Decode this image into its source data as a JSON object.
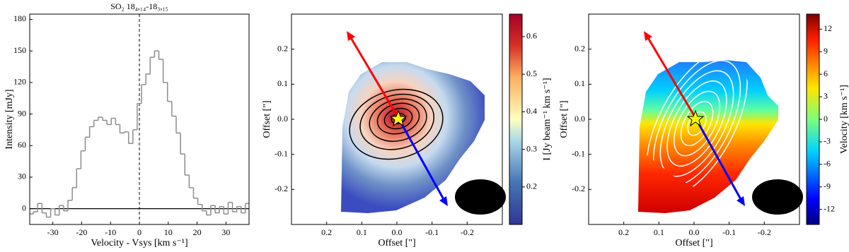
{
  "chart_data": [
    {
      "type": "step",
      "title": "SO₂ 18₄,₁₄-18₃,₁₅",
      "xlabel": "Velocity - Vsys [km s⁻¹]",
      "ylabel": "Intensity [mJy]",
      "x": [
        -37.5,
        -36,
        -34.5,
        -33,
        -31.5,
        -30,
        -28.5,
        -27,
        -25.5,
        -24,
        -22.5,
        -21,
        -19.5,
        -18,
        -16.5,
        -15,
        -13.5,
        -12,
        -10.5,
        -9,
        -7.5,
        -6,
        -4.5,
        -3,
        -1.5,
        0,
        1.5,
        3,
        4.5,
        6,
        7.5,
        9,
        10.5,
        12,
        13.5,
        15,
        16.5,
        18,
        19.5,
        21,
        22.5,
        24,
        25.5,
        27,
        28.5,
        30,
        31.5,
        33,
        34.5,
        36,
        37.5
      ],
      "values": [
        -5,
        -3,
        5,
        -4,
        -8,
        0,
        -6,
        3,
        -2,
        8,
        20,
        38,
        55,
        68,
        78,
        84,
        87,
        84,
        80,
        86,
        80,
        72,
        73,
        62,
        75,
        100,
        118,
        128,
        144,
        150,
        142,
        120,
        102,
        88,
        72,
        52,
        32,
        20,
        10,
        4,
        -2,
        -6,
        3,
        -4,
        2,
        -5,
        6,
        -3,
        2,
        -4,
        5
      ],
      "color": "#8c8c8c",
      "xlim": [
        -38,
        38
      ],
      "xticks": [
        -30,
        -20,
        -10,
        0,
        10,
        20,
        30
      ],
      "ylim": [
        -15,
        185
      ],
      "yticks": [
        0,
        30,
        60,
        90,
        120,
        150,
        180
      ]
    },
    {
      "type": "image",
      "xlabel": "Offset [\"]",
      "ylabel": "Offset [\"]",
      "xlim": [
        0.3,
        -0.3
      ],
      "xticks": [
        0.2,
        0.1,
        {
          "value": 0,
          "label": "0.0"
        },
        -0.1,
        -0.2
      ],
      "ylim": [
        -0.3,
        0.3
      ],
      "yticks": [
        -0.2,
        -0.1,
        {
          "value": 0,
          "label": "0.0"
        },
        0.1,
        0.2
      ],
      "colormap": "coolwarm",
      "clabel": "I [Jy beam⁻¹ km s⁻¹]",
      "clim": [
        0.1,
        0.66
      ],
      "cticks": [
        0.2,
        0.3,
        0.4,
        0.5,
        0.6
      ]
    },
    {
      "type": "image",
      "xlabel": "Offset [\"]",
      "ylabel": "Offset [\"]",
      "xlim": [
        0.3,
        -0.3
      ],
      "xticks": [
        0.2,
        0.1,
        {
          "value": 0,
          "label": "0.0"
        },
        -0.1,
        -0.2
      ],
      "ylim": [
        -0.3,
        0.3
      ],
      "yticks": [
        -0.2,
        -0.1,
        {
          "value": 0,
          "label": "0.0"
        },
        0.1,
        0.2
      ],
      "colormap": "jet",
      "clabel": "Velocity [km s⁻¹]",
      "clim": [
        -14,
        14
      ],
      "cticks": [
        -12,
        -9,
        -6,
        -3,
        0,
        3,
        6,
        9,
        12
      ]
    }
  ]
}
